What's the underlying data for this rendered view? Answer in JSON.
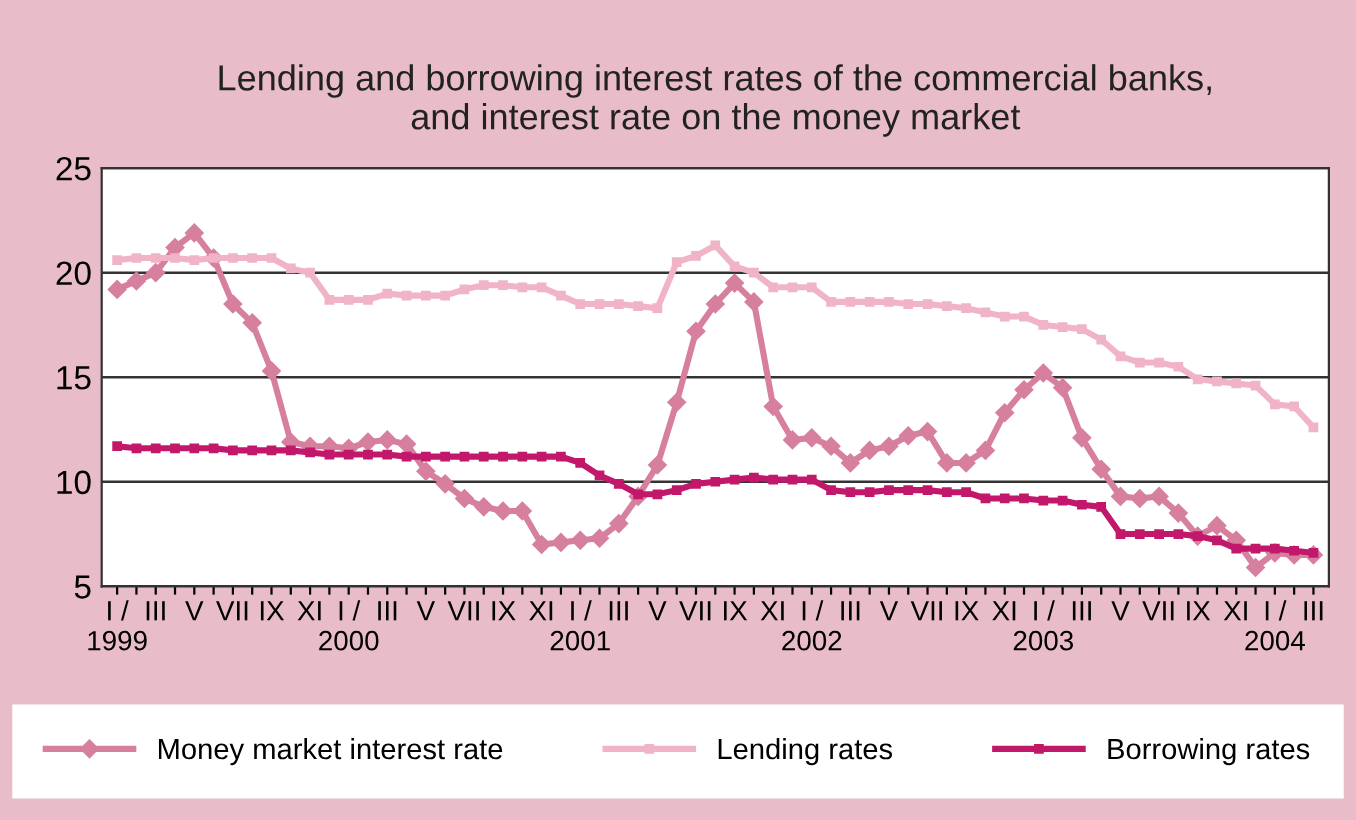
{
  "chart_data": {
    "type": "line",
    "title": "Lending and borrowing interest rates of the commercial banks,\nand interest rate on the money market",
    "categories": [
      "I /\n1999",
      null,
      "III",
      null,
      "V",
      null,
      "VII",
      null,
      "IX",
      null,
      "XI",
      null,
      "I /\n2000",
      null,
      "III",
      null,
      "V",
      null,
      "VII",
      null,
      "IX",
      null,
      "XI",
      null,
      "I /\n2001",
      null,
      "III",
      null,
      "V",
      null,
      "VII",
      null,
      "IX",
      null,
      "XI",
      null,
      "I /\n2002",
      null,
      "III",
      null,
      "V",
      null,
      "VII",
      null,
      "IX",
      null,
      "XI",
      null,
      "I /\n2003",
      null,
      "III",
      null,
      "V",
      null,
      "VII",
      null,
      "IX",
      null,
      "XI",
      null,
      "I /\n2004",
      null,
      "III"
    ],
    "ylim": [
      5,
      25
    ],
    "yticks": [
      5,
      10,
      15,
      20,
      25
    ],
    "grid": "y",
    "legend": "bottom",
    "series": [
      {
        "name": "Money market interest rate",
        "color": "#d67f9f",
        "marker": "diamond",
        "values": [
          19.2,
          19.6,
          20.0,
          21.2,
          21.9,
          20.7,
          18.5,
          17.6,
          15.3,
          11.9,
          11.7,
          11.7,
          11.6,
          11.9,
          12.0,
          11.8,
          10.5,
          9.9,
          9.2,
          8.8,
          8.6,
          8.6,
          7.0,
          7.1,
          7.2,
          7.3,
          8.0,
          9.3,
          10.8,
          13.8,
          17.2,
          18.5,
          19.5,
          18.6,
          13.6,
          12.0,
          12.1,
          11.7,
          10.9,
          11.5,
          11.7,
          12.2,
          12.4,
          10.9,
          10.9,
          11.5,
          13.3,
          14.4,
          15.2,
          14.5,
          12.1,
          10.6,
          9.3,
          9.2,
          9.3,
          8.5,
          7.4,
          7.9,
          7.2,
          5.9,
          6.6,
          6.5,
          6.5
        ]
      },
      {
        "name": "Lending rates",
        "color": "#f0b4c6",
        "marker": "square",
        "values": [
          20.6,
          20.7,
          20.7,
          20.7,
          20.6,
          20.7,
          20.7,
          20.7,
          20.7,
          20.2,
          20.0,
          18.7,
          18.7,
          18.7,
          19.0,
          18.9,
          18.9,
          18.9,
          19.2,
          19.4,
          19.4,
          19.3,
          19.3,
          18.9,
          18.5,
          18.5,
          18.5,
          18.4,
          18.3,
          20.5,
          20.8,
          21.3,
          20.3,
          20.0,
          19.3,
          19.3,
          19.3,
          18.6,
          18.6,
          18.6,
          18.6,
          18.5,
          18.5,
          18.4,
          18.3,
          18.1,
          17.9,
          17.9,
          17.5,
          17.4,
          17.3,
          16.8,
          16.0,
          15.7,
          15.7,
          15.5,
          14.9,
          14.8,
          14.7,
          14.6,
          13.7,
          13.6,
          12.6
        ]
      },
      {
        "name": "Borrowing rates",
        "color": "#c2186b",
        "marker": "square",
        "values": [
          11.7,
          11.6,
          11.6,
          11.6,
          11.6,
          11.6,
          11.5,
          11.5,
          11.5,
          11.5,
          11.4,
          11.3,
          11.3,
          11.3,
          11.3,
          11.2,
          11.2,
          11.2,
          11.2,
          11.2,
          11.2,
          11.2,
          11.2,
          11.2,
          10.9,
          10.3,
          9.9,
          9.4,
          9.4,
          9.6,
          9.9,
          10.0,
          10.1,
          10.2,
          10.1,
          10.1,
          10.1,
          9.6,
          9.5,
          9.5,
          9.6,
          9.6,
          9.6,
          9.5,
          9.5,
          9.2,
          9.2,
          9.2,
          9.1,
          9.1,
          8.9,
          8.8,
          7.5,
          7.5,
          7.5,
          7.5,
          7.4,
          7.2,
          6.8,
          6.8,
          6.8,
          6.7,
          6.6
        ]
      }
    ]
  }
}
